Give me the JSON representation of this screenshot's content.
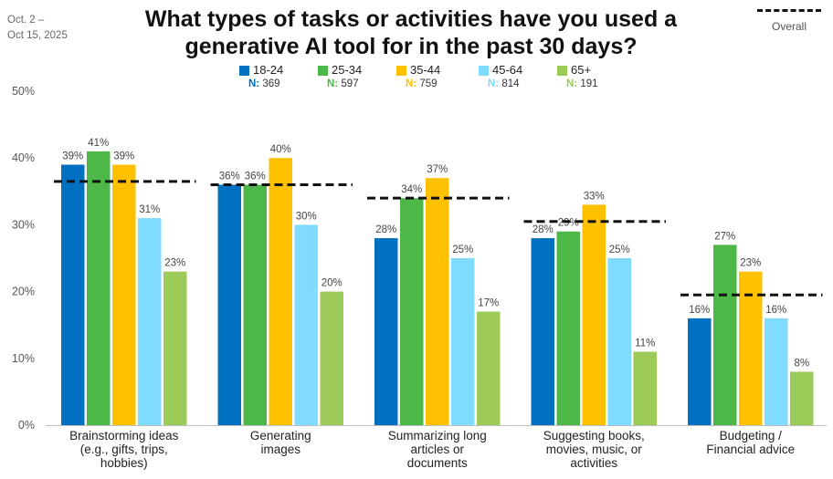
{
  "date_range": [
    "Oct. 2 –",
    "Oct 15, 2025"
  ],
  "chart_data": {
    "type": "bar",
    "title_lines": [
      "What types of tasks or activities have you used a",
      "generative AI tool for in the past 30 days?"
    ],
    "categories": [
      [
        "Brainstorming ideas",
        "(e.g., gifts, trips,",
        "hobbies)"
      ],
      [
        "Generating",
        "images"
      ],
      [
        "Summarizing long",
        "articles or",
        "documents"
      ],
      [
        "Suggesting books,",
        "movies, music, or",
        "activities"
      ],
      [
        "Budgeting /",
        "Financial advice"
      ]
    ],
    "series": [
      {
        "name": "18-24",
        "n_label": "N:",
        "n_value": "369",
        "color": "#0070C0",
        "values": [
          39,
          36,
          28,
          28,
          16
        ],
        "labels": [
          "39%",
          "36%",
          "28%",
          "28%",
          "16%"
        ]
      },
      {
        "name": "25-34",
        "n_label": "N:",
        "n_value": "597",
        "color": "#4DB848",
        "values": [
          41,
          36,
          34,
          29,
          27
        ],
        "labels": [
          "41%",
          "36%",
          "34%",
          "29%",
          "27%"
        ]
      },
      {
        "name": "35-44",
        "n_label": "N:",
        "n_value": "759",
        "color": "#FFC000",
        "values": [
          39,
          40,
          37,
          33,
          23
        ],
        "labels": [
          "39%",
          "40%",
          "37%",
          "33%",
          "23%"
        ]
      },
      {
        "name": "45-64",
        "n_label": "N:",
        "n_value": "814",
        "color": "#7FDBFF",
        "values": [
          31,
          30,
          25,
          25,
          16
        ],
        "labels": [
          "31%",
          "30%",
          "25%",
          "25%",
          "16%"
        ]
      },
      {
        "name": "65+",
        "n_label": "N:",
        "n_value": "191",
        "color": "#9CCB5A",
        "values": [
          23,
          20,
          17,
          11,
          8
        ],
        "labels": [
          "23%",
          "20%",
          "17%",
          "11%",
          "8%"
        ]
      }
    ],
    "overall": {
      "name": "Overall",
      "values": [
        36.5,
        36.0,
        34.0,
        30.5,
        19.5
      ]
    },
    "ylim": [
      0,
      50
    ],
    "yticks": [
      0,
      10,
      20,
      30,
      40,
      50
    ],
    "ytick_labels": [
      "0%",
      "10%",
      "20%",
      "30%",
      "40%",
      "50%"
    ],
    "xlabel": "",
    "ylabel": "",
    "grid": false,
    "legend_position": "top-center"
  }
}
